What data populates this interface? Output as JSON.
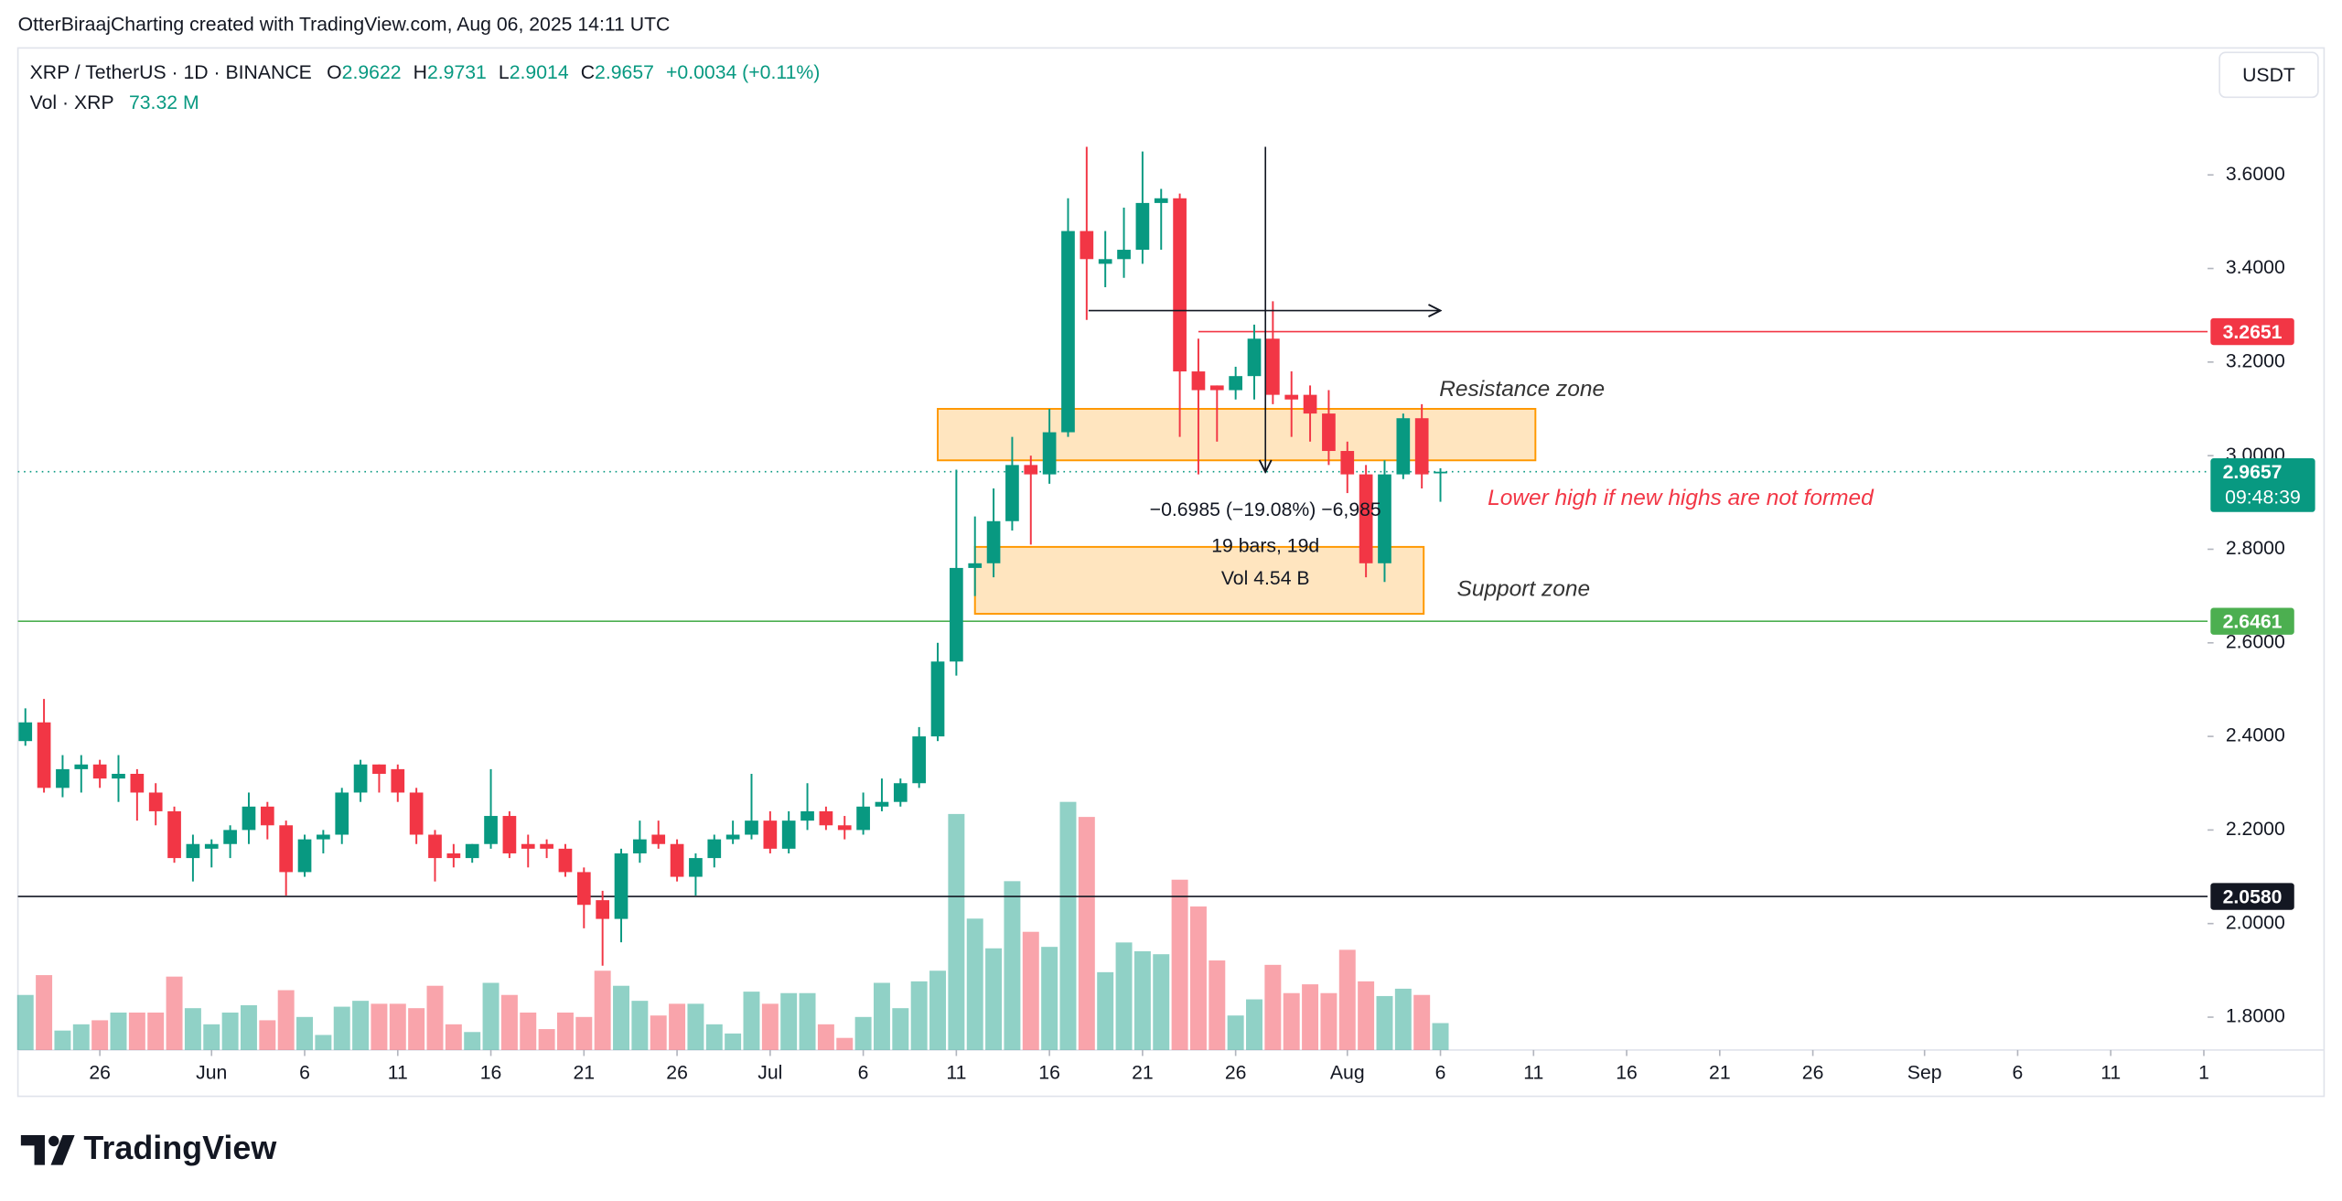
{
  "header": {
    "credit": "OtterBiraajCharting created with TradingView.com, Aug 06, 2025 14:11 UTC",
    "symbol": "XRP / TetherUS · 1D · BINANCE",
    "o": "O",
    "h": "H",
    "l": "L",
    "c": "C",
    "change": "+0.0034 (+0.11%)",
    "vol_title": "Vol · XRP",
    "vol_value": "73.32 M",
    "currency": "USDT",
    "brand": "TradingView"
  },
  "chart_data": {
    "type": "candlestick",
    "up_color": "#089981",
    "down_color": "#f23645",
    "x": [
      0,
      1,
      2,
      3,
      4,
      5,
      6,
      7,
      8,
      9,
      10,
      11,
      12,
      13,
      14,
      15,
      16,
      17,
      18,
      19,
      20,
      21,
      22,
      23,
      24,
      25,
      26,
      27,
      28,
      29,
      30,
      31,
      32,
      33,
      34,
      35,
      36,
      37,
      38,
      39,
      40,
      41,
      42,
      43,
      44,
      45,
      46,
      47,
      48,
      49,
      50,
      51,
      52,
      53,
      54,
      55,
      56,
      57,
      58,
      59,
      60,
      61,
      62,
      63,
      64,
      65,
      66,
      67,
      68,
      69,
      70,
      71,
      72,
      73,
      74,
      75,
      76
    ],
    "open": [
      2.39,
      2.43,
      2.29,
      2.33,
      2.34,
      2.31,
      2.32,
      2.28,
      2.24,
      2.14,
      2.16,
      2.17,
      2.2,
      2.25,
      2.21,
      2.11,
      2.18,
      2.19,
      2.28,
      2.34,
      2.33,
      2.28,
      2.19,
      2.15,
      2.14,
      2.17,
      2.23,
      2.17,
      2.17,
      2.16,
      2.11,
      2.05,
      2.01,
      2.15,
      2.19,
      2.17,
      2.1,
      2.14,
      2.18,
      2.19,
      2.22,
      2.16,
      2.22,
      2.24,
      2.21,
      2.2,
      2.25,
      2.26,
      2.3,
      2.4,
      2.56,
      2.76,
      2.77,
      2.86,
      2.98,
      2.96,
      3.05,
      3.48,
      3.41,
      3.42,
      3.44,
      3.54,
      3.55,
      3.18,
      3.15,
      3.14,
      3.17,
      3.25,
      3.13,
      3.13,
      3.09,
      3.01,
      2.96,
      2.77,
      2.96,
      3.08,
      2.9622
    ],
    "high": [
      2.46,
      2.48,
      2.36,
      2.36,
      2.35,
      2.36,
      2.33,
      2.3,
      2.25,
      2.19,
      2.18,
      2.21,
      2.28,
      2.26,
      2.22,
      2.19,
      2.2,
      2.29,
      2.35,
      2.34,
      2.34,
      2.29,
      2.2,
      2.17,
      2.17,
      2.33,
      2.24,
      2.19,
      2.18,
      2.17,
      2.12,
      2.07,
      2.16,
      2.22,
      2.22,
      2.18,
      2.15,
      2.19,
      2.22,
      2.32,
      2.24,
      2.24,
      2.3,
      2.25,
      2.23,
      2.28,
      2.31,
      2.31,
      2.42,
      2.6,
      2.97,
      2.87,
      2.93,
      3.04,
      3.0,
      3.1,
      3.55,
      3.66,
      3.48,
      3.53,
      3.65,
      3.57,
      3.56,
      3.25,
      3.15,
      3.19,
      3.28,
      3.33,
      3.18,
      3.15,
      3.14,
      3.03,
      2.98,
      2.99,
      3.09,
      3.11,
      2.9731
    ],
    "low": [
      2.38,
      2.28,
      2.27,
      2.28,
      2.29,
      2.26,
      2.22,
      2.21,
      2.13,
      2.09,
      2.12,
      2.14,
      2.17,
      2.18,
      2.06,
      2.1,
      2.15,
      2.17,
      2.26,
      2.28,
      2.26,
      2.17,
      2.09,
      2.12,
      2.13,
      2.16,
      2.14,
      2.12,
      2.14,
      2.1,
      1.99,
      1.91,
      1.96,
      2.13,
      2.16,
      2.09,
      2.06,
      2.12,
      2.17,
      2.18,
      2.15,
      2.15,
      2.2,
      2.2,
      2.18,
      2.19,
      2.24,
      2.25,
      2.29,
      2.39,
      2.53,
      2.7,
      2.74,
      2.84,
      2.81,
      2.94,
      3.04,
      3.29,
      3.36,
      3.38,
      3.41,
      3.44,
      3.04,
      2.96,
      3.03,
      3.12,
      3.12,
      3.11,
      3.04,
      3.03,
      2.98,
      2.92,
      2.74,
      2.73,
      2.95,
      2.93,
      2.9014
    ],
    "close": [
      2.43,
      2.29,
      2.33,
      2.34,
      2.31,
      2.32,
      2.28,
      2.24,
      2.14,
      2.17,
      2.17,
      2.2,
      2.25,
      2.21,
      2.11,
      2.18,
      2.19,
      2.28,
      2.34,
      2.32,
      2.28,
      2.19,
      2.14,
      2.14,
      2.17,
      2.23,
      2.15,
      2.16,
      2.16,
      2.11,
      2.04,
      2.01,
      2.15,
      2.18,
      2.17,
      2.1,
      2.14,
      2.18,
      2.19,
      2.22,
      2.16,
      2.22,
      2.24,
      2.21,
      2.2,
      2.25,
      2.26,
      2.3,
      2.4,
      2.56,
      2.76,
      2.77,
      2.86,
      2.98,
      2.96,
      3.05,
      3.48,
      3.42,
      3.42,
      3.44,
      3.54,
      3.55,
      3.18,
      3.14,
      3.14,
      3.17,
      3.25,
      3.13,
      3.12,
      3.09,
      3.01,
      2.96,
      2.77,
      2.96,
      3.08,
      2.96,
      2.9657
    ],
    "volume": [
      150,
      204,
      53,
      70,
      81,
      102,
      102,
      102,
      200,
      114,
      70,
      102,
      122,
      81,
      163,
      90,
      41,
      118,
      134,
      126,
      126,
      114,
      175,
      70,
      49,
      183,
      150,
      102,
      57,
      102,
      90,
      216,
      175,
      134,
      94,
      126,
      126,
      70,
      45,
      159,
      126,
      155,
      155,
      70,
      33,
      90,
      183,
      114,
      187,
      216,
      643,
      358,
      277,
      460,
      322,
      281,
      676,
      635,
      212,
      293,
      269,
      261,
      464,
      391,
      244,
      94,
      138,
      232,
      155,
      179,
      155,
      273,
      187,
      147,
      167,
      150,
      73.32
    ],
    "volume_ylim": [
      0,
      2730
    ],
    "xlim": [
      -0.4,
      117.2
    ],
    "xticks": [
      {
        "value": 4,
        "label": "26"
      },
      {
        "value": 10,
        "label": "Jun"
      },
      {
        "value": 15,
        "label": "6"
      },
      {
        "value": 20,
        "label": "11"
      },
      {
        "value": 25,
        "label": "16"
      },
      {
        "value": 30,
        "label": "21"
      },
      {
        "value": 35,
        "label": "26"
      },
      {
        "value": 40,
        "label": "Jul"
      },
      {
        "value": 45,
        "label": "6"
      },
      {
        "value": 50,
        "label": "11"
      },
      {
        "value": 55,
        "label": "16"
      },
      {
        "value": 60,
        "label": "21"
      },
      {
        "value": 65,
        "label": "26"
      },
      {
        "value": 71,
        "label": "Aug"
      },
      {
        "value": 76,
        "label": "6"
      },
      {
        "value": 81,
        "label": "11"
      },
      {
        "value": 86,
        "label": "16"
      },
      {
        "value": 91,
        "label": "21"
      },
      {
        "value": 96,
        "label": "26"
      },
      {
        "value": 102,
        "label": "Sep"
      },
      {
        "value": 107,
        "label": "6"
      },
      {
        "value": 112,
        "label": "11"
      },
      {
        "value": 117,
        "label": "1"
      }
    ],
    "ylim": [
      1.7298,
      3.8713
    ],
    "yticks": [
      {
        "value": 1.8,
        "label": "1.8000"
      },
      {
        "value": 2,
        "label": "2.0000"
      },
      {
        "value": 2.2,
        "label": "2.2000"
      },
      {
        "value": 2.4,
        "label": "2.4000"
      },
      {
        "value": 2.6,
        "label": "2.6000"
      },
      {
        "value": 2.8,
        "label": "2.8000"
      },
      {
        "value": 3,
        "label": "3.0000"
      },
      {
        "value": 3.2,
        "label": "3.2000"
      },
      {
        "value": 3.4,
        "label": "3.4000"
      },
      {
        "value": 3.6,
        "label": "3.6000"
      }
    ],
    "countdown": "09:48:39",
    "lines": [
      {
        "value": 3.2651,
        "label": "3.2651",
        "color": "#f23645",
        "from_x": 63
      },
      {
        "value": 2.6461,
        "label": "2.6461",
        "color": "#4caf50",
        "from_x": -0.4
      },
      {
        "value": 2.058,
        "label": "2.0580",
        "color": "#131722",
        "from_x": -0.4
      }
    ],
    "zones": [
      {
        "label": "Resistance zone",
        "x": [
          49,
          81.1
        ],
        "y": [
          3.1,
          2.99
        ]
      },
      {
        "label": "Support zone",
        "x": [
          51,
          75.1
        ],
        "y": [
          2.805,
          2.662
        ]
      }
    ],
    "measure": {
      "x": [
        57.1,
        76
      ],
      "y": [
        3.66,
        2.965
      ],
      "arrow_y": 3.31,
      "x_at": 66.6,
      "change": "−0.6985 (−19.08%) −6,985",
      "bars": "19 bars, 19d",
      "volume": "Vol 4.54 B"
    },
    "note": "Lower high if new highs are not formed"
  }
}
